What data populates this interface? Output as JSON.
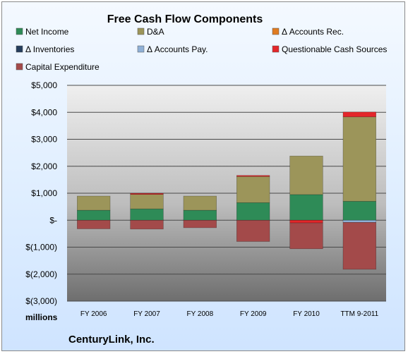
{
  "chart_data": {
    "type": "bar",
    "stacked": true,
    "title": "Free Cash Flow Components",
    "units_label": "millions",
    "company": "CenturyLink, Inc.",
    "categories": [
      "FY 2006",
      "FY 2007",
      "FY 2008",
      "FY 2009",
      "FY 2010",
      "TTM 9-2011"
    ],
    "ylim": [
      -3000,
      5000
    ],
    "yticks": [
      {
        "value": 5000,
        "label": "$5,000"
      },
      {
        "value": 4000,
        "label": "$4,000"
      },
      {
        "value": 3000,
        "label": "$3,000"
      },
      {
        "value": 2000,
        "label": "$2,000"
      },
      {
        "value": 1000,
        "label": "$1,000"
      },
      {
        "value": 0,
        "label": "$-"
      },
      {
        "value": -1000,
        "label": "$(1,000)"
      },
      {
        "value": -2000,
        "label": "$(2,000)"
      },
      {
        "value": -3000,
        "label": "$(3,000)"
      }
    ],
    "grid": true,
    "legend_position": "top",
    "series": [
      {
        "name": "Net Income",
        "color": "#2e8b57",
        "values": [
          370,
          420,
          370,
          650,
          950,
          700
        ]
      },
      {
        "name": "D&A",
        "color": "#9c955a",
        "values": [
          525,
          535,
          525,
          970,
          1430,
          3130
        ]
      },
      {
        "name": "Δ Accounts Rec.",
        "color": "#e07b20",
        "values": [
          0,
          0,
          0,
          0,
          0,
          0
        ]
      },
      {
        "name": "Δ Inventories",
        "color": "#253d5c",
        "values": [
          0,
          0,
          0,
          0,
          0,
          0
        ]
      },
      {
        "name": "Δ Accounts Pay.",
        "color": "#8fb0d6",
        "values": [
          0,
          0,
          0,
          0,
          0,
          -80
        ]
      },
      {
        "name": "Questionable Cash Sources",
        "color": "#e3262a",
        "values": [
          0,
          40,
          0,
          40,
          -100,
          180
        ]
      },
      {
        "name": "Capital Expenditure",
        "color": "#a34a4a",
        "values": [
          -320,
          -330,
          -280,
          -790,
          -960,
          -1740
        ]
      }
    ]
  }
}
